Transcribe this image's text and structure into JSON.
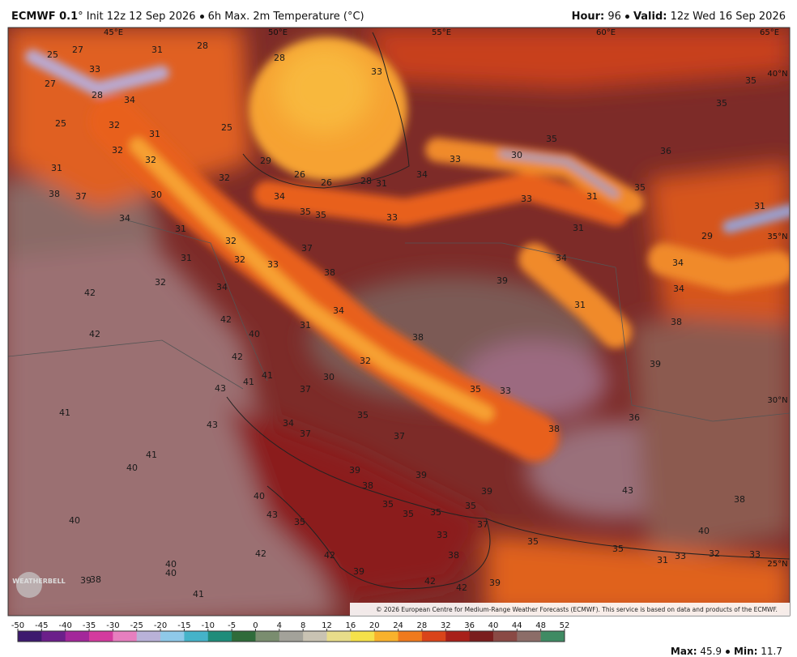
{
  "header": {
    "model": "ECMWF 0.1",
    "init": "° Init 12z 12 Sep 2026",
    "product": "6h Max. 2m Temperature (°C)",
    "hour_label": "Hour:",
    "hour": "96",
    "valid_label": "Valid:",
    "valid": "12z Wed 16 Sep 2026"
  },
  "map": {
    "lon_labels": [
      "45°E",
      "50°E",
      "55°E",
      "60°E",
      "65°E"
    ],
    "lat_labels": [
      "40°N",
      "35°N",
      "30°N",
      "25°N"
    ],
    "temperature_labels": [
      25,
      27,
      31,
      28,
      28,
      33,
      27,
      28,
      34,
      33,
      35,
      35,
      25,
      32,
      31,
      25,
      32,
      32,
      36,
      35,
      30,
      33,
      29,
      26,
      26,
      28,
      31,
      34,
      31,
      32,
      35,
      31,
      33,
      38,
      37,
      30,
      34,
      35,
      35,
      33,
      34,
      31,
      31,
      31,
      29,
      32,
      37,
      34,
      34,
      31,
      32,
      33,
      38,
      39,
      34,
      32,
      34,
      42,
      31,
      34,
      42,
      31,
      38,
      40,
      42,
      38,
      42,
      32,
      39,
      41,
      30,
      41,
      43,
      37,
      35,
      33,
      34,
      35,
      36,
      38,
      43,
      41,
      37,
      37,
      41,
      40,
      39,
      39,
      38,
      39,
      40,
      43,
      38,
      35,
      35,
      35,
      35,
      43,
      35,
      40,
      37,
      33,
      40,
      35,
      35,
      42,
      42,
      38,
      31,
      33,
      32,
      33,
      40,
      40,
      39,
      38,
      42,
      42,
      39,
      39,
      41
    ],
    "copyright": "© 2026 European Centre for Medium-Range Weather Forecasts (ECMWF). This service is based on data and products of the ECMWF.",
    "logo": "WEATHERBELL"
  },
  "colorbar": {
    "ticks": [
      -50,
      -45,
      -40,
      -35,
      -30,
      -25,
      -20,
      -15,
      -10,
      -5,
      0,
      4,
      8,
      12,
      16,
      20,
      24,
      28,
      32,
      36,
      40,
      44,
      48,
      52
    ],
    "colors": [
      "#3d1a6e",
      "#6b1f8a",
      "#a3279a",
      "#d33b9e",
      "#e77fbf",
      "#b9b2d8",
      "#8fc9e9",
      "#45b3c9",
      "#1f8c7a",
      "#2f6b3a",
      "#7a8d6f",
      "#a3a29a",
      "#c9c3b3",
      "#e8dd8a",
      "#f5e14a",
      "#f9b22c",
      "#f07a1d",
      "#d9441a",
      "#a8201a",
      "#7a1e1e",
      "#8a4a45",
      "#8c6d68",
      "#3f8b63"
    ]
  },
  "footer": {
    "max_label": "Max:",
    "max": 45.9,
    "min_label": "Min:",
    "min": 11.7
  }
}
